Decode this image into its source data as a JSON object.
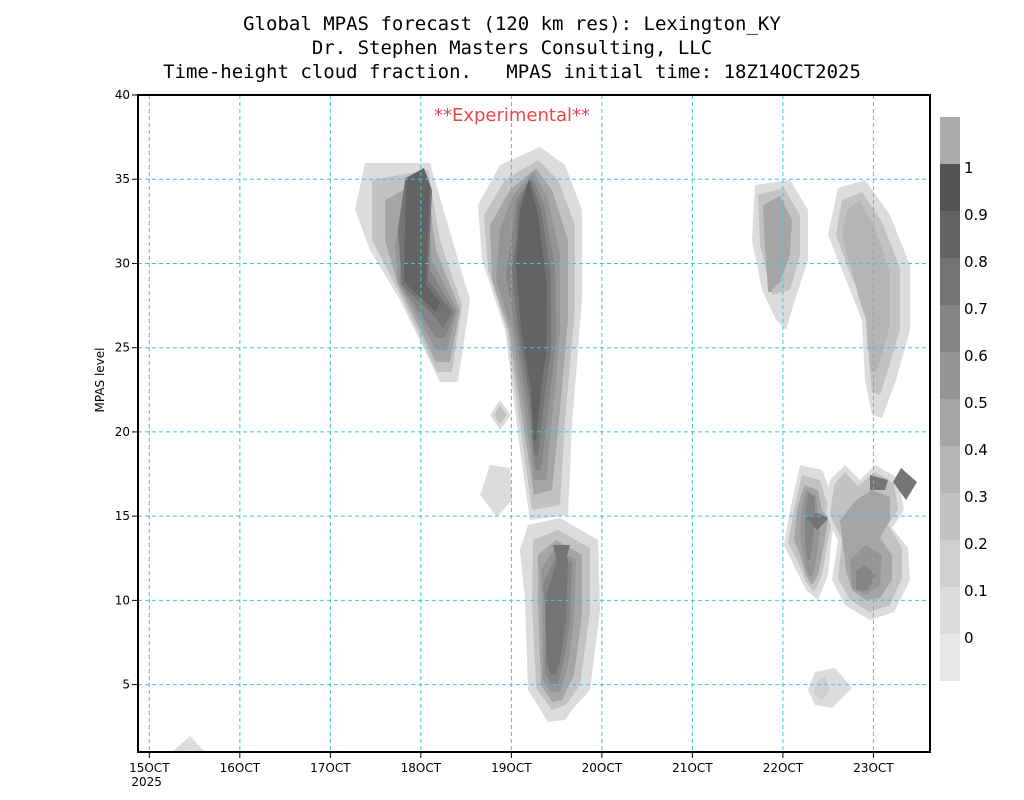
{
  "title": {
    "line1": "Global MPAS forecast (120 km res): Lexington_KY",
    "line2": "Dr. Stephen Masters Consulting, LLC",
    "line3": "Time-height cloud fraction.   MPAS initial time: 18Z14OCT2025"
  },
  "stamp": "**Experimental**",
  "colors": {
    "grid": "#3cc8d2",
    "stamp": "#e8474a",
    "levels": [
      "#ffffff",
      "#dcdcdc",
      "#cfcfcf",
      "#c2c2c2",
      "#b5b5b5",
      "#a5a5a5",
      "#959595",
      "#858585",
      "#747474",
      "#636363",
      "#545454"
    ]
  },
  "chart_data": {
    "type": "heatmap",
    "xlabel": "",
    "ylabel": "MPAS level",
    "x_ticks": [
      "15OCT",
      "16OCT",
      "17OCT",
      "18OCT",
      "19OCT",
      "20OCT",
      "21OCT",
      "22OCT",
      "23OCT"
    ],
    "x_tick_sublabel": "2025",
    "x_range_days": [
      14.875,
      23.625
    ],
    "ylim": [
      1,
      40
    ],
    "y_ticks": [
      5,
      10,
      15,
      20,
      25,
      30,
      35,
      40
    ],
    "colorbar_labels": [
      "0",
      "0.1",
      "0.2",
      "0.3",
      "0.4",
      "0.5",
      "0.6",
      "0.7",
      "0.8",
      "0.9",
      "1"
    ],
    "grid": true,
    "features": [
      {
        "name": "cloud-1",
        "day": 17.9,
        "levels": [
          24,
          36
        ],
        "max_fraction": 0.9
      },
      {
        "name": "cloud-2",
        "day": 19.3,
        "levels": [
          15,
          37
        ],
        "max_fraction": 0.9
      },
      {
        "name": "cloud-3",
        "day": 18.9,
        "levels": [
          20,
          22
        ],
        "max_fraction": 0.6
      },
      {
        "name": "cloud-4",
        "day": 18.8,
        "levels": [
          15,
          18
        ],
        "max_fraction": 0.2
      },
      {
        "name": "cloud-5",
        "day": 19.5,
        "levels": [
          3,
          15
        ],
        "max_fraction": 0.8
      },
      {
        "name": "cloud-6",
        "day": 15.4,
        "levels": [
          1,
          2
        ],
        "max_fraction": 0.1
      },
      {
        "name": "cloud-7",
        "day": 21.95,
        "levels": [
          26,
          35
        ],
        "max_fraction": 0.5
      },
      {
        "name": "cloud-8",
        "day": 22.9,
        "levels": [
          21,
          34
        ],
        "max_fraction": 0.4
      },
      {
        "name": "cloud-9",
        "day": 22.4,
        "levels": [
          10,
          17
        ],
        "max_fraction": 0.8
      },
      {
        "name": "cloud-10",
        "day": 22.9,
        "levels": [
          9,
          18
        ],
        "max_fraction": 0.8
      },
      {
        "name": "cloud-11",
        "day": 22.4,
        "levels": [
          3,
          6
        ],
        "max_fraction": 0.2
      }
    ]
  }
}
